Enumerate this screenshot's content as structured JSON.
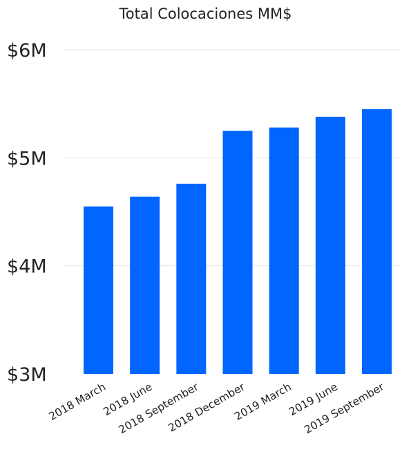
{
  "chart_data": {
    "type": "bar",
    "title": "Total Colocaciones MM$",
    "xlabel": "",
    "ylabel": "",
    "categories": [
      "2018 March",
      "2018 June",
      "2018 September",
      "2018 December",
      "2019 March",
      "2019 June",
      "2019 September"
    ],
    "values": [
      4.55,
      4.64,
      4.76,
      5.25,
      5.28,
      5.38,
      5.45
    ],
    "units": "M",
    "ylim": [
      3,
      6
    ],
    "yticks": [
      3,
      4,
      5,
      6
    ],
    "ytick_labels": [
      "$3M",
      "$4M",
      "$5M",
      "$6M"
    ],
    "grid": true,
    "legend": "none",
    "bar_color": "#0066ff"
  }
}
